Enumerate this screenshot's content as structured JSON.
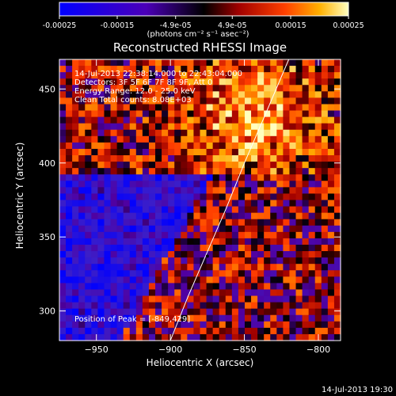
{
  "chart_data": {
    "type": "heatmap",
    "title": "Reconstructed RHESSI Image",
    "xlabel": "Heliocentric X (arcsec)",
    "ylabel": "Heliocentric Y (arcsec)",
    "xlim": [
      -975,
      -785
    ],
    "ylim": [
      280,
      470
    ],
    "xticks": [
      -950,
      -900,
      -850,
      -800
    ],
    "yticks": [
      300,
      350,
      400,
      450
    ],
    "colorbar": {
      "min": -0.00025,
      "max": 0.00025,
      "ticks": [
        -0.00025,
        -0.00015,
        -4.9e-05,
        4.9e-05,
        0.00015,
        0.00025
      ],
      "tick_labels": [
        "-0.00025",
        "-0.00015",
        "-4.9e-05",
        "4.9e-05",
        "0.00015",
        "0.00025"
      ],
      "label": "(photons cm⁻² s⁻¹ asec⁻²)"
    },
    "info_lines": [
      "14-Jul-2013 22:38:14.000 to 22:43:04.000",
      "Detectors: 3F 5F 6F 7F 8F 9F, Att 0",
      "Energy Range: 12.0 - 25.0 keV",
      "Clean     Total counts: 8.08E+03"
    ],
    "peak_label": "Position of Peak = [-849,429]",
    "peak": [
      -849,
      429
    ],
    "limb_curve": [
      [
        -900,
        280
      ],
      [
        -888,
        310
      ],
      [
        -875,
        340
      ],
      [
        -862,
        370
      ],
      [
        -850,
        400
      ],
      [
        -837,
        430
      ],
      [
        -820,
        470
      ]
    ],
    "footer": "14-Jul-2013 19:30"
  }
}
